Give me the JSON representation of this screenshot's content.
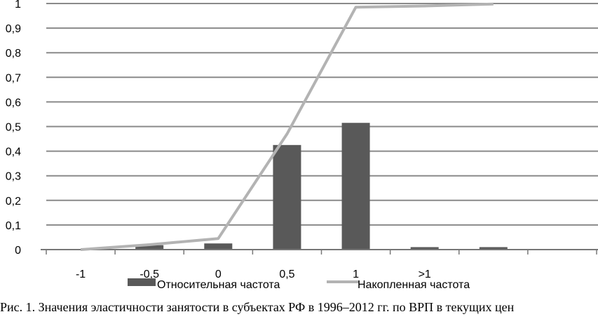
{
  "chart_data": {
    "type": "bar+line",
    "categories": [
      "-1",
      "-0,5",
      "0",
      "0,5",
      "1",
      ">1",
      "",
      ""
    ],
    "series": [
      {
        "name": "Относительная частота",
        "type": "bar",
        "color": "#595959",
        "values": [
          0,
          0.018,
          0.025,
          0.425,
          0.515,
          0.01,
          0.01,
          0
        ]
      },
      {
        "name": "Накопленная частота",
        "type": "line",
        "color": "#b3b3b3",
        "values": [
          0,
          0.02,
          0.045,
          0.47,
          0.985,
          0.99,
          0.998,
          null
        ]
      }
    ],
    "yticks": [
      "0",
      "0,1",
      "0,2",
      "0,3",
      "0,4",
      "0,5",
      "0,6",
      "0,7",
      "0,8",
      "0,9",
      "1"
    ],
    "ylim": [
      0,
      1
    ],
    "grid": true,
    "legend": "bottom"
  },
  "caption": "Рис. 1. Значения эластичности занятости в субъектах РФ в 1996–2012 гг. по ВРП в текущих цен"
}
